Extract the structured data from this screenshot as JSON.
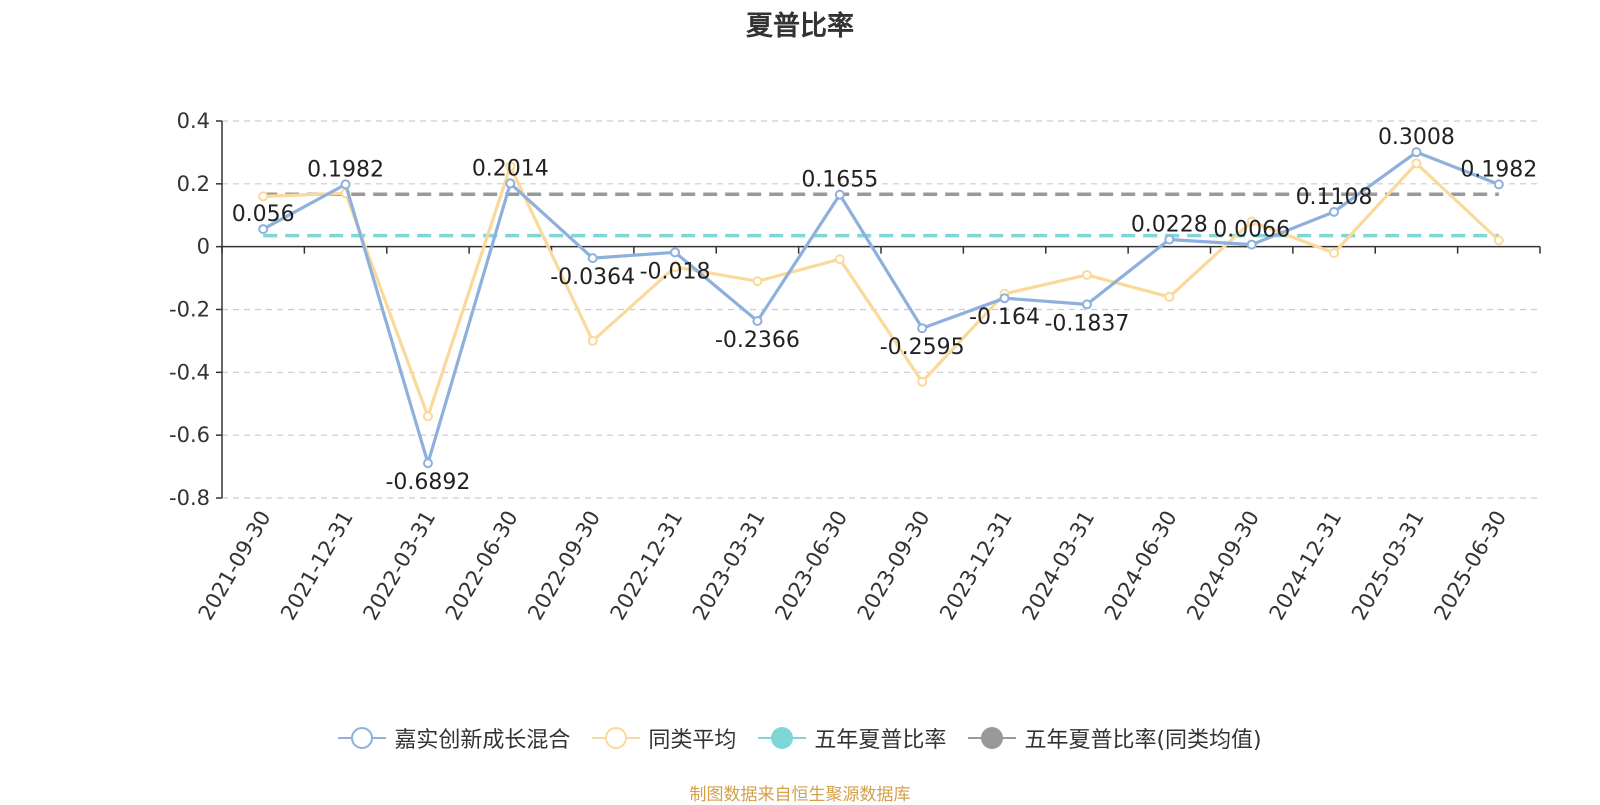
{
  "chart_data": {
    "type": "line",
    "title": "夏普比率",
    "xlabel": "",
    "ylabel": "",
    "ylim": [
      -0.8,
      0.4
    ],
    "yticks": [
      0.4,
      0.2,
      0,
      -0.2,
      -0.4,
      -0.6,
      -0.8
    ],
    "ytick_labels": [
      "0.4",
      "0.2",
      "0",
      "-0.2",
      "-0.4",
      "-0.6",
      "-0.8"
    ],
    "grid": true,
    "legend_position": "bottom",
    "categories": [
      "2021-09-30",
      "2021-12-31",
      "2022-03-31",
      "2022-06-30",
      "2022-09-30",
      "2022-12-31",
      "2023-03-31",
      "2023-06-30",
      "2023-09-30",
      "2023-12-31",
      "2024-03-31",
      "2024-06-30",
      "2024-09-30",
      "2024-12-31",
      "2025-03-31",
      "2025-06-30"
    ],
    "series": [
      {
        "name": "嘉实创新成长混合",
        "color": "#8eb0dc",
        "values": [
          0.056,
          0.1982,
          -0.6892,
          0.2014,
          -0.0364,
          -0.018,
          -0.2366,
          0.1655,
          -0.2595,
          -0.164,
          -0.1837,
          0.0228,
          0.0066,
          0.1108,
          0.3008,
          0.1982
        ],
        "labels": [
          "0.056",
          "0.1982",
          "-0.6892",
          "0.2014",
          "-0.0364",
          "-0.018",
          "-0.2366",
          "0.1655",
          "-0.2595",
          "-0.164",
          "-0.1837",
          "0.0228",
          "0.0066",
          "0.1108",
          "0.3008",
          "0.1982"
        ]
      },
      {
        "name": "同类平均",
        "color": "#fbd99b",
        "values": [
          0.16,
          0.17,
          -0.54,
          0.255,
          -0.3,
          -0.065,
          -0.11,
          -0.04,
          -0.43,
          -0.15,
          -0.09,
          -0.16,
          0.08,
          -0.02,
          0.265,
          0.02
        ]
      },
      {
        "name": "五年夏普比率",
        "color": "#7fd6d6",
        "value": 0.035
      },
      {
        "name": "五年夏普比率(同类均值)",
        "color": "#999999",
        "value": 0.167
      }
    ]
  },
  "source_note": "制图数据来自恒生聚源数据库"
}
